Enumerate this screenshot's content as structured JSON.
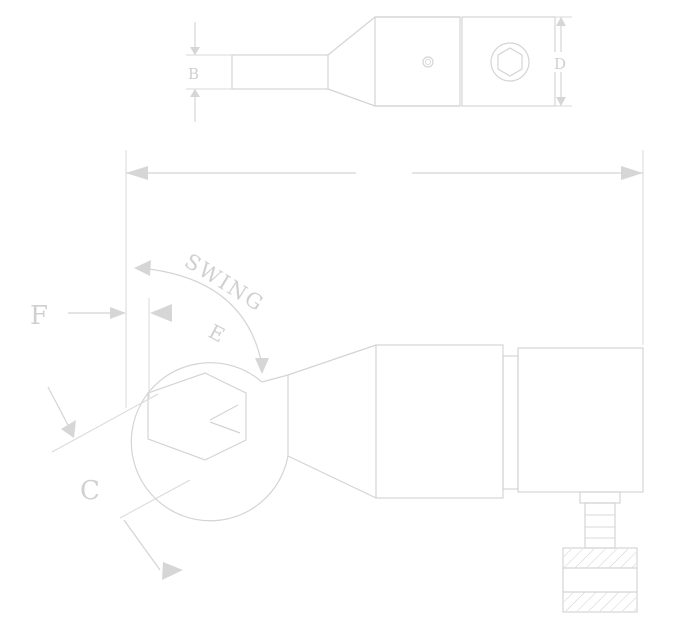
{
  "labels": {
    "b": "B",
    "d": "D",
    "f": "F",
    "c": "C",
    "e": "E",
    "swing": "SWING"
  },
  "colors": {
    "line": "#d4d4d4",
    "text": "#d0d0d0",
    "background": "#ffffff"
  }
}
